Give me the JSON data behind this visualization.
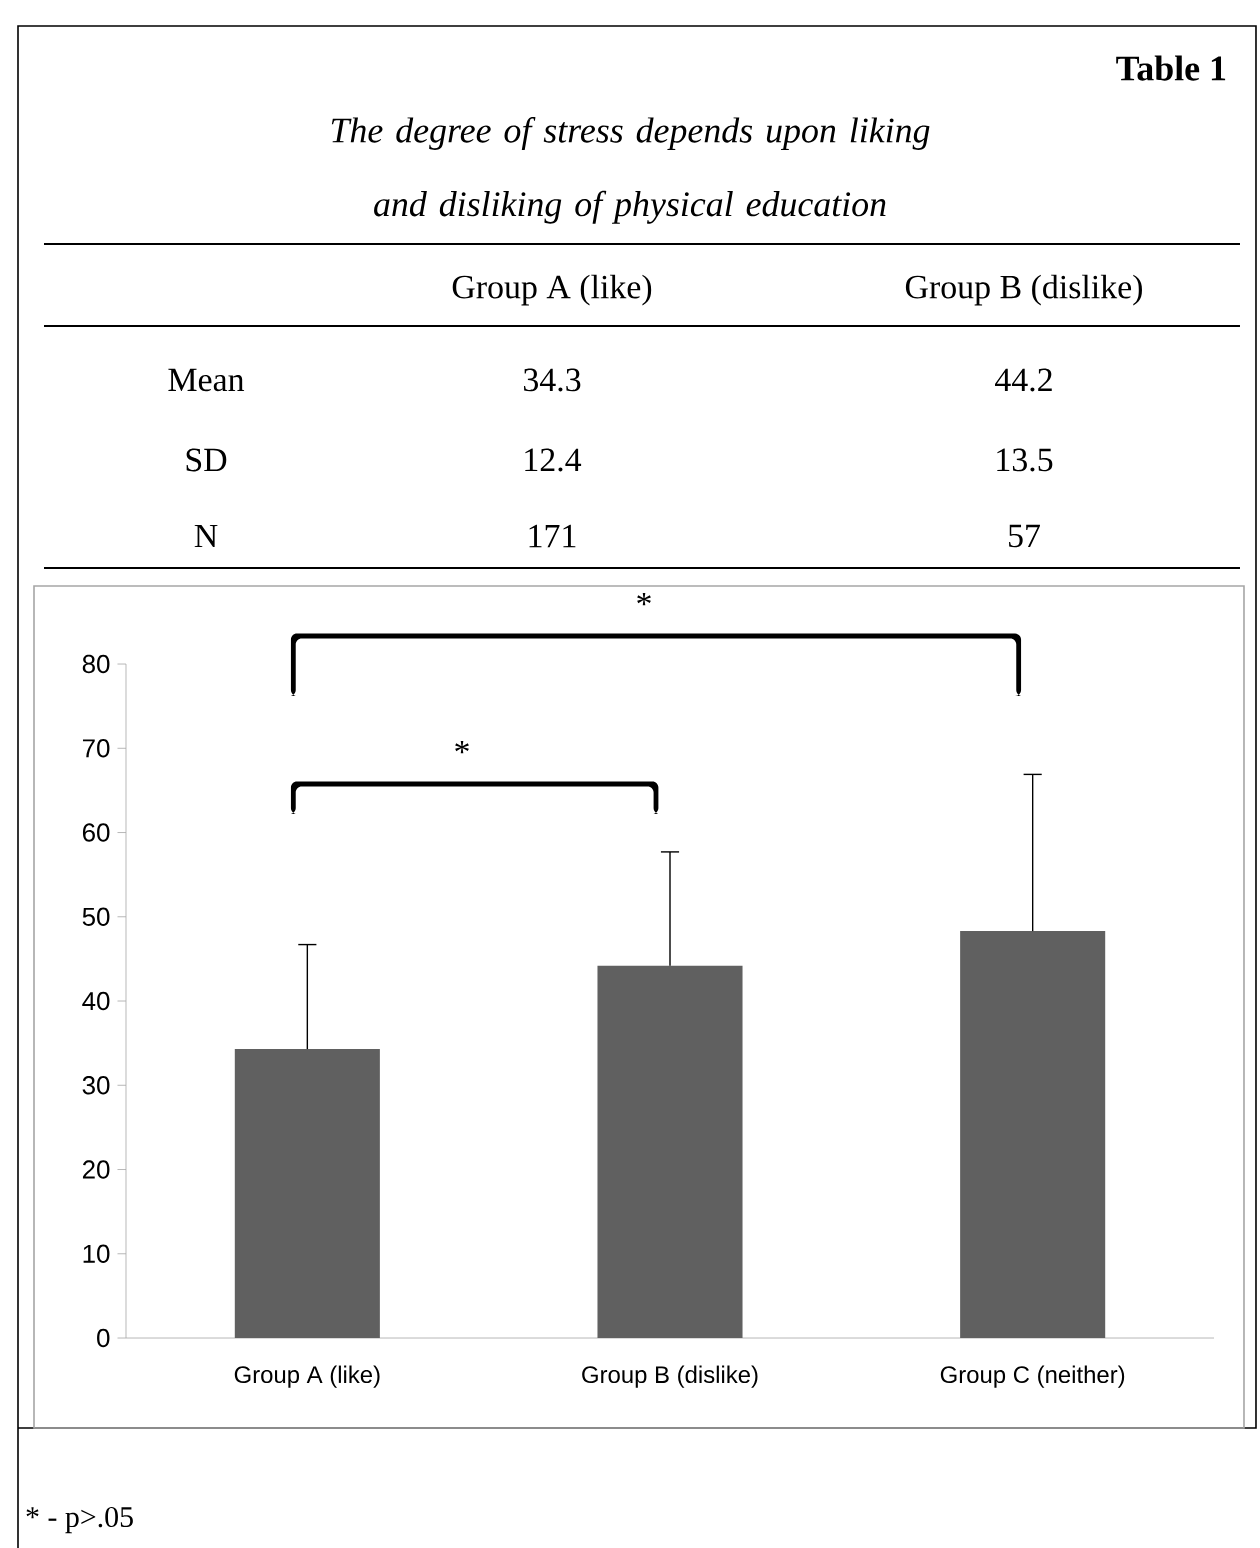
{
  "chart_data": {
    "type": "bar",
    "title": "Table 1",
    "subtitle": "The degree of stress depends upon liking and disliking of physical education",
    "categories": [
      "Group A (like)",
      "Group B (dislike)",
      "Group C (neither)"
    ],
    "values": [
      34.3,
      44.2,
      48.3
    ],
    "color": "#606060",
    "errors": [
      [
        34.3,
        46.7
      ],
      [
        44.2,
        57.7
      ],
      [
        48.3,
        66.9
      ]
    ],
    "ylim": [
      0,
      80
    ],
    "yticks": [
      0,
      10,
      20,
      30,
      40,
      50,
      60,
      70,
      80
    ],
    "grid": false,
    "annotations": [
      "Group A (like)",
      "Group B (dislike)",
      "Mean",
      "34.3",
      "44.2",
      "SD",
      "12.4",
      "13.5",
      "N",
      "171",
      "57",
      "*",
      "*",
      "* - p>.05"
    ]
  }
}
